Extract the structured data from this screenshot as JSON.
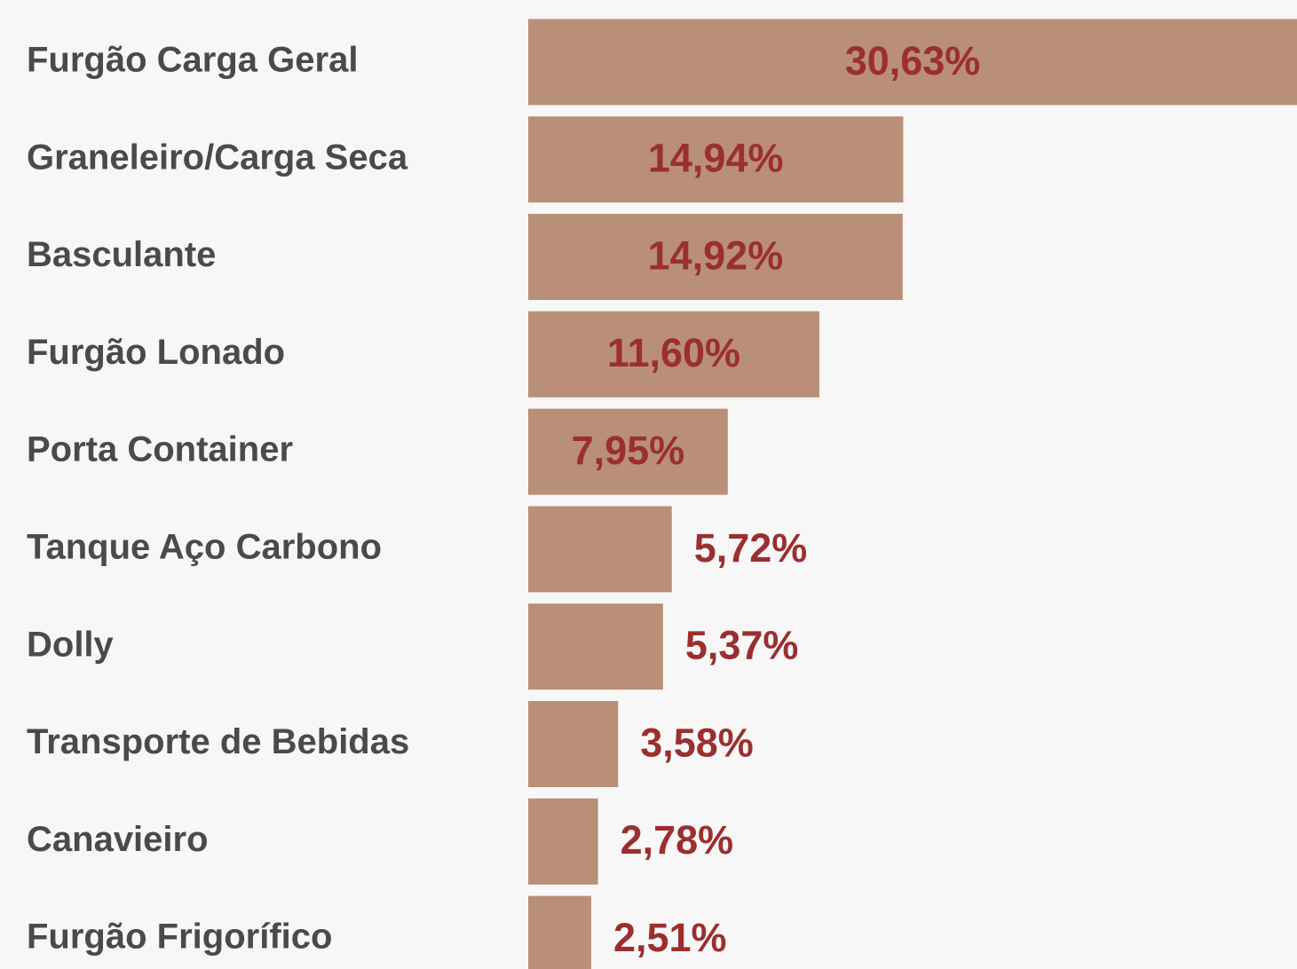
{
  "chart_data": {
    "type": "bar",
    "orientation": "horizontal",
    "categories": [
      "Furgão Carga Geral",
      "Graneleiro/Carga Seca",
      "Basculante",
      "Furgão Lonado",
      "Porta Container",
      "Tanque Aço Carbono",
      "Dolly",
      "Transporte de Bebidas",
      "Canavieiro",
      "Furgão Frigorífico"
    ],
    "values": [
      30.63,
      14.94,
      14.92,
      11.6,
      7.95,
      5.72,
      5.37,
      3.58,
      2.78,
      2.51
    ],
    "value_labels": [
      "30,63%",
      "14,94%",
      "14,92%",
      "11,60%",
      "7,95%",
      "5,72%",
      "5,37%",
      "3,58%",
      "2,78%",
      "2,51%"
    ],
    "color": "#b98f77",
    "label_color": "#9b2f2f"
  }
}
